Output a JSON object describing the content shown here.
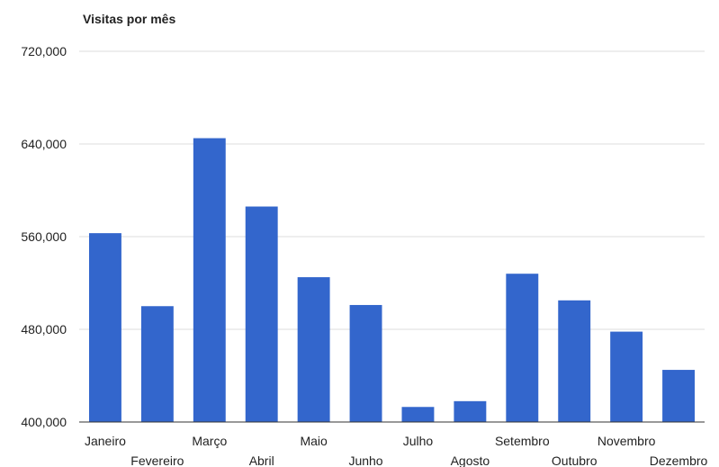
{
  "chart_data": {
    "type": "bar",
    "title": "Visitas por mês",
    "xlabel": "",
    "ylabel": "",
    "categories": [
      "Janeiro",
      "Fevereiro",
      "Março",
      "Abril",
      "Maio",
      "Junho",
      "Julho",
      "Agosto",
      "Setembro",
      "Outubro",
      "Novembro",
      "Dezembro"
    ],
    "values": [
      563000,
      500000,
      645000,
      586000,
      525000,
      501000,
      413000,
      418000,
      528000,
      505000,
      478000,
      445000
    ],
    "ylim": [
      400000,
      720000
    ],
    "yticks": [
      400000,
      480000,
      560000,
      640000,
      720000
    ],
    "ytick_labels": [
      "400,000",
      "480,000",
      "560,000",
      "640,000",
      "720,000"
    ],
    "grid": true,
    "legend": "none",
    "bar_color": "#3366cc",
    "grid_color": "#dcdcdc",
    "axis_color": "#333333"
  }
}
